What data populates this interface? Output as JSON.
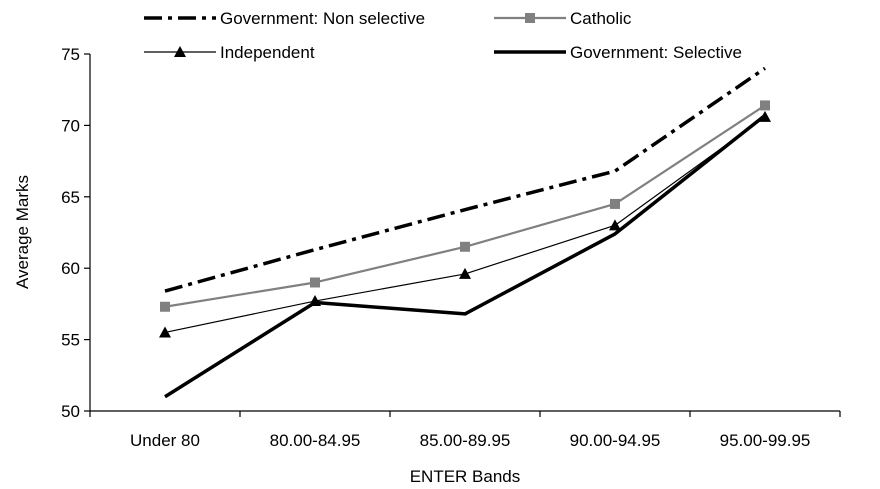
{
  "chart_data": {
    "type": "line",
    "title": "",
    "xlabel": "ENTER Bands",
    "ylabel": "Average Marks",
    "ylim": [
      50,
      75
    ],
    "yticks": [
      "50",
      "55",
      "60",
      "65",
      "70",
      "75"
    ],
    "grid": false,
    "legend_position": "top",
    "categories": [
      "Under 80",
      "80.00-84.95",
      "85.00-89.95",
      "90.00-94.95",
      "95.00-99.95"
    ],
    "series": [
      {
        "name": "Government: Non selective",
        "values": [
          58.4,
          61.3,
          64.1,
          66.8,
          74.0
        ],
        "color": "#000000",
        "style": "dash-dot",
        "marker": "none"
      },
      {
        "name": "Catholic",
        "values": [
          57.3,
          59.0,
          61.5,
          64.5,
          71.4
        ],
        "color": "#808080",
        "style": "solid",
        "marker": "square"
      },
      {
        "name": "Independent",
        "values": [
          55.5,
          57.7,
          59.6,
          63.0,
          70.6
        ],
        "color": "#000000",
        "style": "thin",
        "marker": "triangle"
      },
      {
        "name": "Government: Selective",
        "values": [
          51.0,
          57.6,
          56.8,
          62.4,
          70.7
        ],
        "color": "#000000",
        "style": "thick",
        "marker": "none"
      }
    ]
  }
}
